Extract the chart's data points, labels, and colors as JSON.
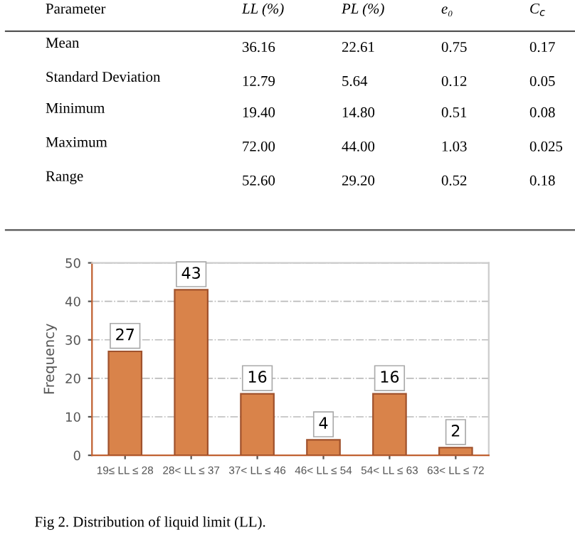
{
  "chart_data": [
    {
      "type": "other",
      "annotations": [
        "Parameter",
        "LL (%)",
        "PL (%)",
        "e₀",
        "C$_{c}$",
        "Mean",
        "36.16",
        "22.61",
        "0.75",
        "0.17",
        "Standard Deviation",
        "12.79",
        "5.64",
        "0.12",
        "0.05",
        "Minimum",
        "19.40",
        "14.80",
        "0.51",
        "0.08",
        "Maximum",
        "72.00",
        "44.00",
        "1.03",
        "0.025",
        "Range",
        "52.60",
        "29.20",
        "0.52",
        "0.18"
      ]
    },
    {
      "type": "bar",
      "ylabel": "Frequency",
      "categories": [
        "19≤ LL ≤ 28",
        "28< LL ≤ 37",
        "37< LL ≤ 46",
        "46< LL ≤ 54",
        "54< LL ≤ 63",
        "63< LL ≤ 72"
      ],
      "values": [
        27,
        43,
        16,
        4,
        16,
        2
      ],
      "color": "#d9834a",
      "ylim": [
        0,
        50
      ],
      "yticks": [
        0,
        10,
        20,
        30,
        40,
        50
      ],
      "grid": "y",
      "data_labels": true,
      "annotations": [
        "Fig 2. Distribution of liquid limit (LL)."
      ]
    }
  ]
}
